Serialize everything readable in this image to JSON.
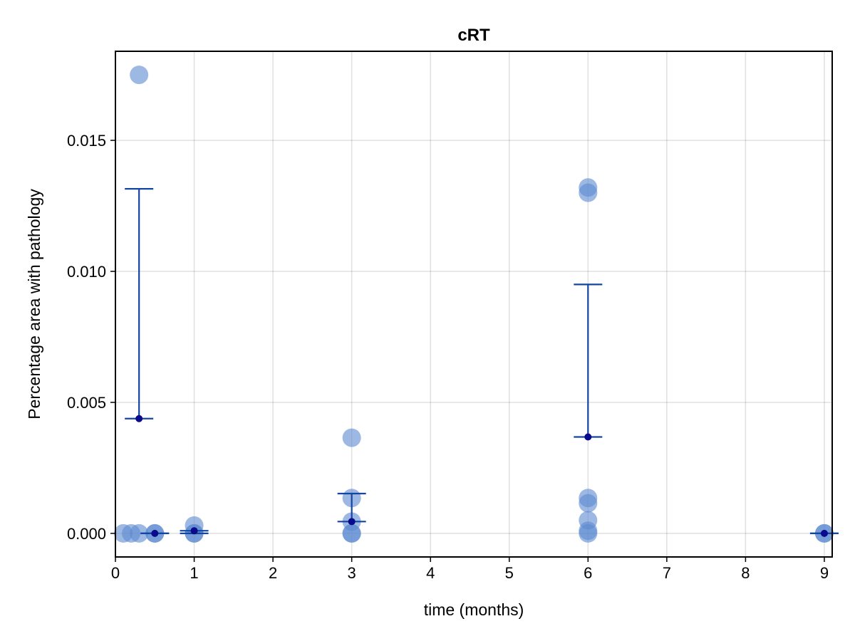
{
  "chart_data": {
    "type": "scatter",
    "title": "cRT",
    "xlabel": "time (months)",
    "ylabel": "Percentage area with pathology",
    "xlim": [
      0,
      9.1
    ],
    "ylim": [
      -0.0009,
      0.0184
    ],
    "x_ticks": [
      0,
      1,
      2,
      3,
      4,
      5,
      6,
      7,
      8,
      9
    ],
    "y_ticks": [
      0.0,
      0.005,
      0.01,
      0.015
    ],
    "x_tick_labels": [
      "0",
      "1",
      "2",
      "3",
      "4",
      "5",
      "6",
      "7",
      "8",
      "9"
    ],
    "y_tick_labels": [
      "0.000",
      "0.005",
      "0.010",
      "0.015"
    ],
    "grid": true,
    "colors": {
      "points": "#5B8BD0",
      "errorbar": "#1346A0",
      "mean": "#0A0A8C"
    },
    "points": [
      {
        "x": 0.1,
        "y": 0.0
      },
      {
        "x": 0.2,
        "y": 0.0
      },
      {
        "x": 0.3,
        "y": 0.0
      },
      {
        "x": 0.3,
        "y": 0.0175
      },
      {
        "x": 0.5,
        "y": 0.0
      },
      {
        "x": 0.5,
        "y": 0.0
      },
      {
        "x": 1.0,
        "y": 0.0003
      },
      {
        "x": 1.0,
        "y": 0.0
      },
      {
        "x": 1.0,
        "y": 0.0
      },
      {
        "x": 3.0,
        "y": 0.00365
      },
      {
        "x": 3.0,
        "y": 0.00135
      },
      {
        "x": 3.0,
        "y": 0.00045
      },
      {
        "x": 3.0,
        "y": 0.0
      },
      {
        "x": 3.0,
        "y": 0.0
      },
      {
        "x": 6.0,
        "y": 0.0132
      },
      {
        "x": 6.0,
        "y": 0.013
      },
      {
        "x": 6.0,
        "y": 0.00135
      },
      {
        "x": 6.0,
        "y": 0.00115
      },
      {
        "x": 6.0,
        "y": 0.0005
      },
      {
        "x": 6.0,
        "y": 0.0001
      },
      {
        "x": 6.0,
        "y": 0.0
      },
      {
        "x": 9.0,
        "y": 0.0
      },
      {
        "x": 9.0,
        "y": 0.0
      }
    ],
    "summary": [
      {
        "x": 0.3,
        "mean": 0.00438,
        "lower": 0.00438,
        "upper": 0.01315
      },
      {
        "x": 0.5,
        "mean": 0.0,
        "lower": 0.0,
        "upper": 0.0
      },
      {
        "x": 1.0,
        "mean": 0.0001,
        "lower": 0.0,
        "upper": 0.0001
      },
      {
        "x": 3.0,
        "mean": 0.00045,
        "lower": 0.00045,
        "upper": 0.00152
      },
      {
        "x": 6.0,
        "mean": 0.00368,
        "lower": 0.00368,
        "upper": 0.0095
      },
      {
        "x": 9.0,
        "mean": 0.0,
        "lower": 0.0,
        "upper": 0.0
      }
    ]
  }
}
